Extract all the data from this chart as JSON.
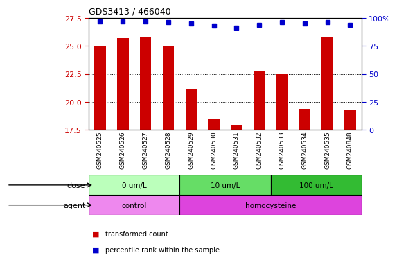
{
  "title": "GDS3413 / 466040",
  "samples": [
    "GSM240525",
    "GSM240526",
    "GSM240527",
    "GSM240528",
    "GSM240529",
    "GSM240530",
    "GSM240531",
    "GSM240532",
    "GSM240533",
    "GSM240534",
    "GSM240535",
    "GSM240848"
  ],
  "transformed_count": [
    25.0,
    25.7,
    25.8,
    25.0,
    21.2,
    18.5,
    17.9,
    22.8,
    22.5,
    19.4,
    25.8,
    19.3
  ],
  "percentile_rank": [
    97,
    97,
    97,
    96,
    95,
    93,
    91,
    94,
    96,
    95,
    96,
    94
  ],
  "ylim_left": [
    17.5,
    27.5
  ],
  "ylim_right": [
    0,
    100
  ],
  "yticks_left": [
    17.5,
    20.0,
    22.5,
    25.0,
    27.5
  ],
  "yticks_right": [
    0,
    25,
    50,
    75,
    100
  ],
  "bar_color": "#cc0000",
  "dot_color": "#0000cc",
  "dose_groups": [
    {
      "label": "0 um/L",
      "start": 0,
      "end": 4,
      "color": "#bbffbb"
    },
    {
      "label": "10 um/L",
      "start": 4,
      "end": 8,
      "color": "#66dd66"
    },
    {
      "label": "100 um/L",
      "start": 8,
      "end": 12,
      "color": "#33bb33"
    }
  ],
  "agent_groups": [
    {
      "label": "control",
      "start": 0,
      "end": 4,
      "color": "#ee88ee"
    },
    {
      "label": "homocysteine",
      "start": 4,
      "end": 12,
      "color": "#dd44dd"
    }
  ],
  "legend_items": [
    {
      "color": "#cc0000",
      "label": "transformed count"
    },
    {
      "color": "#0000cc",
      "label": "percentile rank within the sample"
    }
  ],
  "tick_color_left": "#cc0000",
  "tick_color_right": "#0000cc",
  "bar_bottom": 17.5,
  "right_tick_labels": [
    "0",
    "25",
    "50",
    "75",
    "100%"
  ]
}
